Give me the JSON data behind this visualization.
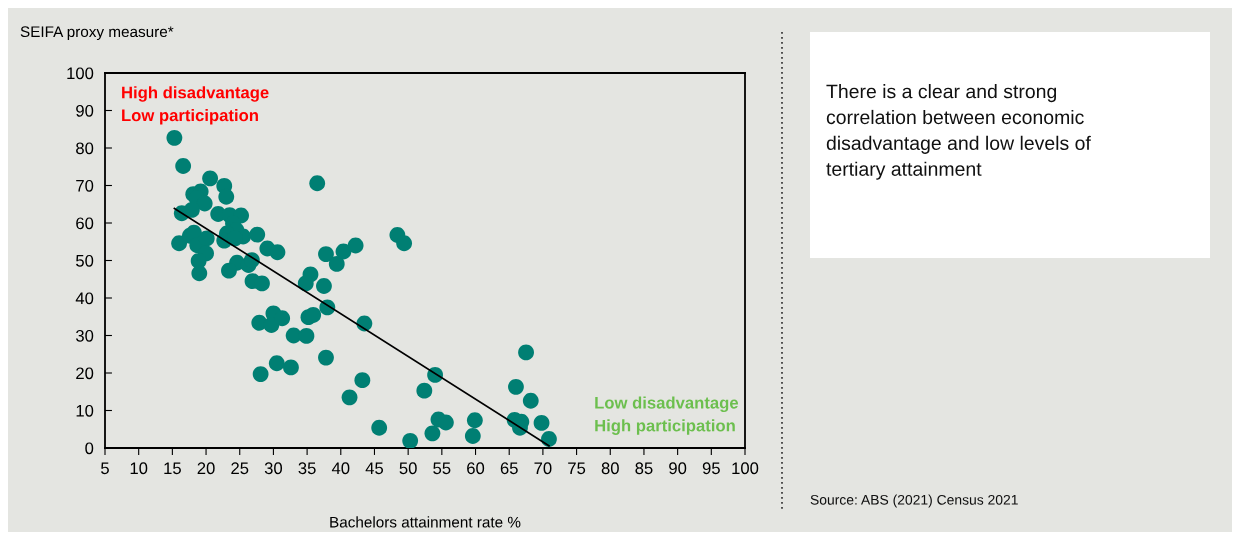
{
  "chart_data": {
    "type": "scatter",
    "xlabel": "Bachelors attainment rate %",
    "ylabel": "SEIFA proxy measure*",
    "xlim": [
      5,
      100
    ],
    "xticks": [
      5,
      10,
      15,
      20,
      25,
      30,
      35,
      40,
      45,
      50,
      55,
      60,
      65,
      70,
      75,
      80,
      85,
      90,
      95,
      100
    ],
    "ylim": [
      0,
      100
    ],
    "yticks": [
      0,
      10,
      20,
      30,
      40,
      50,
      60,
      70,
      80,
      90,
      100
    ],
    "grid": false,
    "series": [
      {
        "marker": "circle",
        "color": "#007f73",
        "x": [
          15.3,
          16.6,
          20.6,
          22.7,
          23.0,
          18.1,
          19.2,
          18.6,
          19.8,
          17.9,
          16.4,
          21.8,
          23.5,
          25.2,
          24.0,
          24.5,
          23.1,
          25.5,
          22.7,
          24.3,
          27.6,
          16.0,
          17.6,
          18.2,
          18.7,
          20.1,
          20.0,
          18.9,
          19.0,
          29.1,
          30.6,
          24.6,
          23.4,
          26.3,
          26.8,
          26.9,
          28.3,
          35.5,
          34.8,
          27.9,
          30.0,
          29.7,
          31.3,
          35.2,
          35.9,
          33.0,
          34.9,
          28.1,
          30.5,
          32.6,
          36.5,
          37.5,
          37.8,
          39.4,
          40.4,
          42.2,
          48.4,
          49.4,
          38.0,
          43.5,
          37.8,
          43.2,
          41.3,
          45.7,
          50.3,
          53.6,
          52.4,
          54.0,
          54.5,
          55.6,
          59.9,
          59.6,
          66.0,
          67.5,
          68.2,
          65.8,
          66.8,
          66.6,
          69.8,
          70.9
        ],
        "values": [
          82.7,
          75.2,
          71.9,
          69.9,
          67.0,
          67.7,
          68.4,
          66.6,
          65.2,
          63.5,
          62.6,
          62.4,
          62.1,
          62.0,
          59.9,
          58.1,
          57.2,
          56.4,
          55.3,
          55.9,
          56.9,
          54.6,
          56.6,
          57.4,
          54.1,
          55.9,
          51.9,
          49.9,
          46.6,
          53.2,
          52.2,
          49.4,
          47.3,
          48.8,
          50.1,
          44.5,
          43.9,
          46.3,
          43.9,
          33.4,
          35.9,
          32.8,
          34.6,
          34.9,
          35.5,
          30.0,
          29.9,
          19.7,
          22.6,
          21.5,
          70.6,
          43.2,
          51.7,
          49.1,
          52.4,
          54.0,
          56.8,
          54.6,
          37.5,
          33.2,
          24.1,
          18.1,
          13.5,
          5.4,
          1.9,
          3.9,
          15.3,
          19.5,
          7.6,
          6.8,
          7.4,
          3.2,
          16.3,
          25.5,
          12.6,
          7.5,
          7.0,
          5.4,
          6.7,
          2.4
        ]
      },
      {
        "type": "line",
        "color": "#000000",
        "x": [
          15.3,
          70.9
        ],
        "values": [
          63.9,
          0.6
        ]
      }
    ],
    "annotations": [
      "High disadvantage\nLow participation",
      "Low disadvantage\nHigh participation",
      "There is a clear and strong\ncorrelation between economic\ndisadvantage and low levels of\ntertiary attainment",
      "Source: ABS (2021) Census 2021"
    ]
  }
}
